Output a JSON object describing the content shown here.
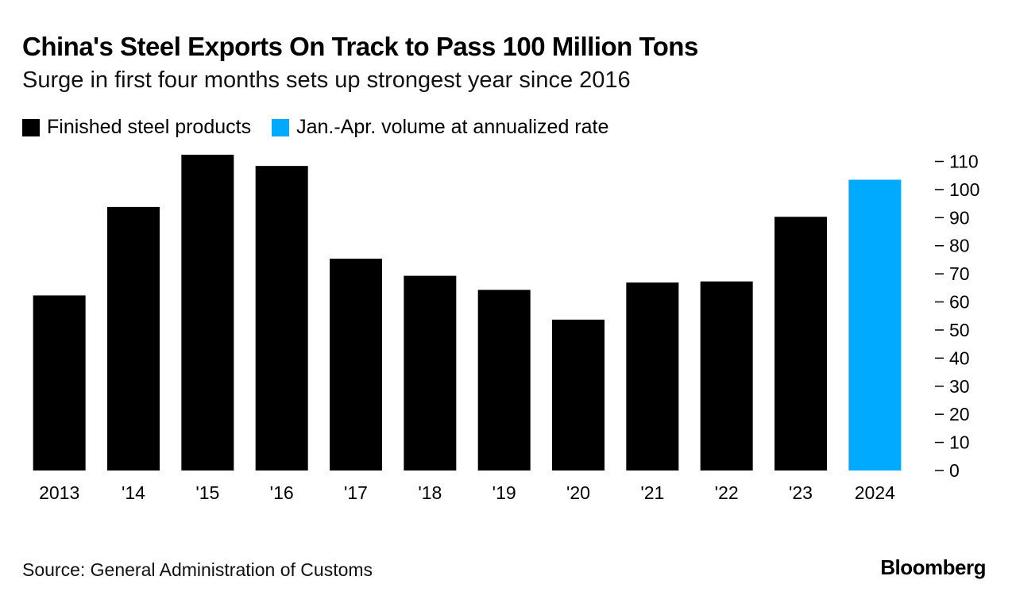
{
  "title": "China's Steel Exports On Track to Pass 100 Million Tons",
  "subtitle": "Surge in first four months sets up strongest year since 2016",
  "source": "Source: General Administration of Customs",
  "brand": "Bloomberg",
  "legend": [
    {
      "label": "Finished steel products",
      "color": "#000000"
    },
    {
      "label": "Jan.-Apr. volume at annualized rate",
      "color": "#00aaff"
    }
  ],
  "chart_data": {
    "type": "bar",
    "title": "China's Steel Exports On Track to Pass 100 Million Tons",
    "categories": [
      "2013",
      "'14",
      "'15",
      "'16",
      "'17",
      "'18",
      "'19",
      "'20",
      "'21",
      "'22",
      "'23",
      "2024"
    ],
    "series": [
      {
        "name": "Finished steel products",
        "color": "#000000",
        "values": [
          62.3,
          93.8,
          112.4,
          108.4,
          75.4,
          69.3,
          64.3,
          53.7,
          66.9,
          67.3,
          90.3,
          null
        ]
      },
      {
        "name": "Jan.-Apr. volume at annualized rate",
        "color": "#00aaff",
        "values": [
          null,
          null,
          null,
          null,
          null,
          null,
          null,
          null,
          null,
          null,
          null,
          103.5
        ]
      }
    ],
    "yticks": [
      0,
      10,
      20,
      30,
      40,
      50,
      60,
      70,
      80,
      90,
      100,
      110
    ],
    "ylim": [
      0,
      112.4
    ],
    "xlabel": "",
    "ylabel": "",
    "grid": false,
    "yaxis_position": "right"
  }
}
